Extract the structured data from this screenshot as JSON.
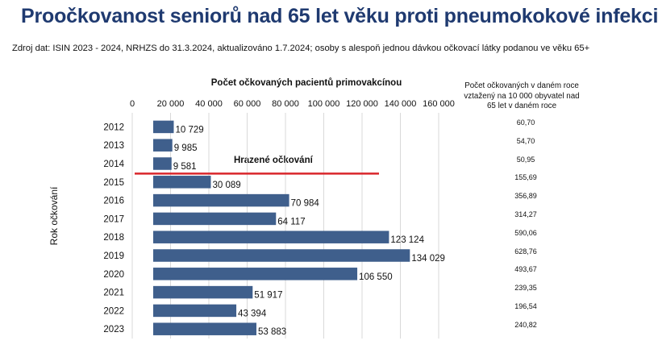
{
  "title": "Proočkovanost seniorů nad 65 let věku proti pneumokokové infekci",
  "subtitle": "Zdroj dat: ISIN 2023 - 2024, NRHZS do 31.3.2024, aktualizováno 1.7.2024; osoby s alespoň jednou dávkou očkovací látky podanou ve věku 65+",
  "rates": {
    "header": "Počet očkovaných v daném roce vztažený na 10 000 obyvatel nad 65 let v daném roce",
    "values": [
      "60,70",
      "54,70",
      "50,95",
      "155,69",
      "356,89",
      "314,27",
      "590,06",
      "628,76",
      "493,67",
      "239,35",
      "196,54",
      "240,82"
    ]
  },
  "colors": {
    "bar": "#3f5f8c",
    "marker": "#d9262b",
    "title": "#1f3a70",
    "grid": "#d9d9d9"
  },
  "chart_data": {
    "type": "bar",
    "orientation": "horizontal",
    "title": "Počet očkovaných pacientů primovakcínou",
    "ylabel": "Rok očkování",
    "xlim": [
      0,
      160000
    ],
    "xticks": [
      "0",
      "20 000",
      "40 000",
      "60 000",
      "80 000",
      "100 000",
      "120 000",
      "140 000",
      "160 000"
    ],
    "categories": [
      "2012",
      "2013",
      "2014",
      "2015",
      "2016",
      "2017",
      "2018",
      "2019",
      "2020",
      "2021",
      "2022",
      "2023"
    ],
    "values": [
      10729,
      9985,
      9581,
      30089,
      70984,
      64117,
      123124,
      134029,
      106550,
      51917,
      43394,
      53883
    ],
    "value_labels": [
      "10 729",
      "9 985",
      "9 581",
      "30 089",
      "70 984",
      "64 117",
      "123 124",
      "134 029",
      "106 550",
      "51 917",
      "43 394",
      "53 883"
    ],
    "grid": true,
    "annotation": {
      "label": "Hrazené očkování",
      "between": [
        "2014",
        "2015"
      ]
    }
  }
}
